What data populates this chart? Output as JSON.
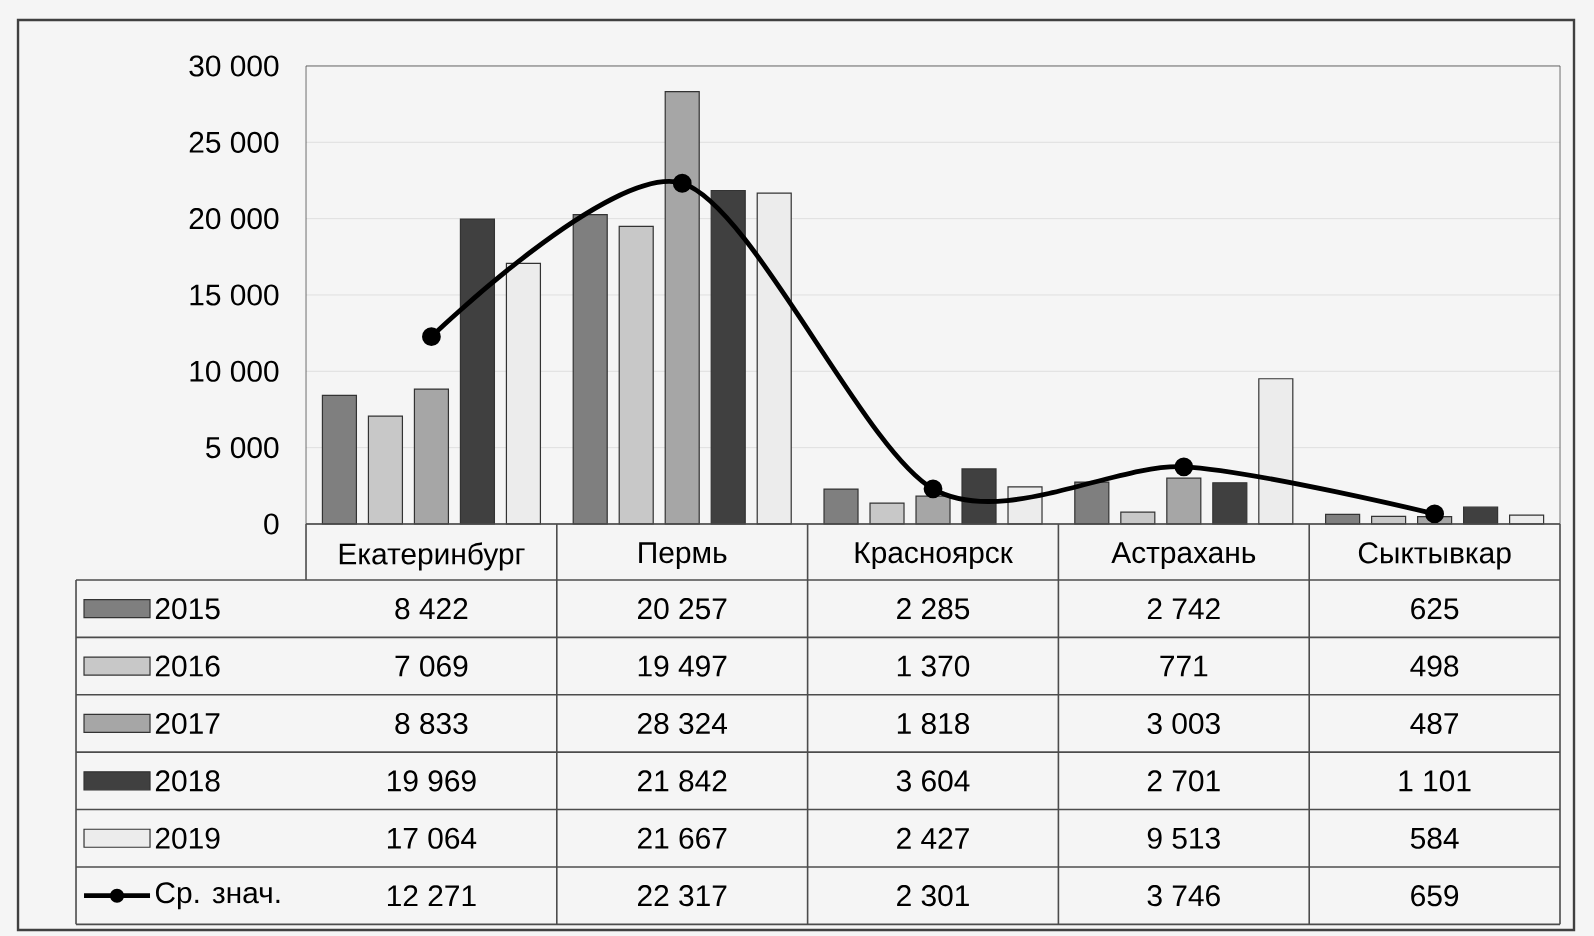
{
  "chart_data": {
    "type": "bar",
    "categories": [
      "Екатеринбург",
      "Пермь",
      "Красноярск",
      "Астрахань",
      "Сыктывкар"
    ],
    "series": [
      {
        "name": "2015",
        "color": "#7f7f7f",
        "values": [
          8422,
          20257,
          2285,
          2742,
          625
        ],
        "value_labels": [
          "8 422",
          "20 257",
          "2 285",
          "2 742",
          "625"
        ]
      },
      {
        "name": "2016",
        "color": "#c8c8c8",
        "values": [
          7069,
          19497,
          1370,
          771,
          498
        ],
        "value_labels": [
          "7 069",
          "19 497",
          "1 370",
          "771",
          "498"
        ]
      },
      {
        "name": "2017",
        "color": "#a6a6a6",
        "values": [
          8833,
          28324,
          1818,
          3003,
          487
        ],
        "value_labels": [
          "8 833",
          "28 324",
          "1 818",
          "3 003",
          "487"
        ]
      },
      {
        "name": "2018",
        "color": "#404040",
        "values": [
          19969,
          21842,
          3604,
          2701,
          1101
        ],
        "value_labels": [
          "19 969",
          "21 842",
          "3 604",
          "2 701",
          "1 101"
        ]
      },
      {
        "name": "2019",
        "color": "#ececec",
        "values": [
          17064,
          21667,
          2427,
          9513,
          584
        ],
        "value_labels": [
          "17 064",
          "21 667",
          "2 427",
          "9 513",
          "584"
        ]
      },
      {
        "name": "Ср. знач.",
        "type": "line",
        "color": "#000000",
        "marker": "circle",
        "values": [
          12271,
          22317,
          2301,
          3746,
          659
        ],
        "value_labels": [
          "12 271",
          "22 317",
          "2 301",
          "3 746",
          "659"
        ]
      }
    ],
    "ylim": [
      0,
      30000
    ],
    "yticks": [
      {
        "value": 0,
        "label": "0"
      },
      {
        "value": 5000,
        "label": "5 000"
      },
      {
        "value": 10000,
        "label": "10 000"
      },
      {
        "value": 15000,
        "label": "15 000"
      },
      {
        "value": 20000,
        "label": "20 000"
      },
      {
        "value": 25000,
        "label": "25 000"
      },
      {
        "value": 30000,
        "label": "30 000"
      }
    ],
    "grid": "y",
    "legend": "bottom left"
  }
}
